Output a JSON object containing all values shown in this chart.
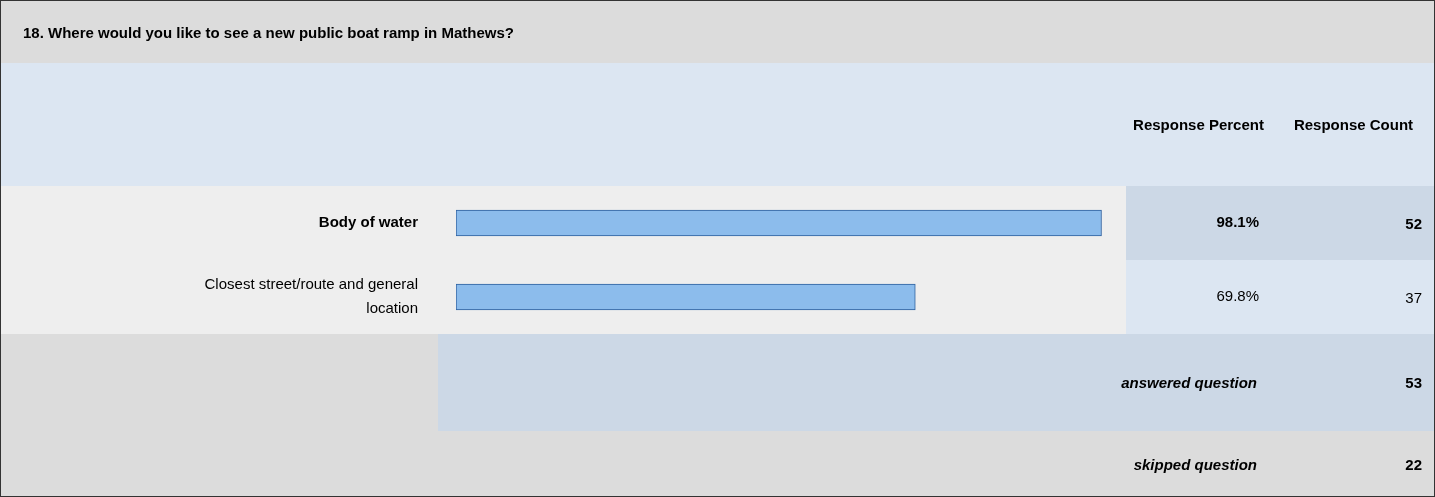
{
  "chart_data": {
    "type": "bar",
    "orientation": "horizontal",
    "title": "18. Where would you like to see a new public boat ramp in Mathews?",
    "categories": [
      "Body of water",
      "Closest street/route and general location"
    ],
    "values": [
      98.1,
      69.8
    ],
    "color": "#8cbcec",
    "tick_labels": "y",
    "value_labels": [
      "98.1%",
      "69.8%"
    ],
    "annotations": [
      "Response Percent",
      "Response Count",
      "52",
      "37",
      "answered question",
      "53",
      "skipped question",
      "22"
    ]
  }
}
